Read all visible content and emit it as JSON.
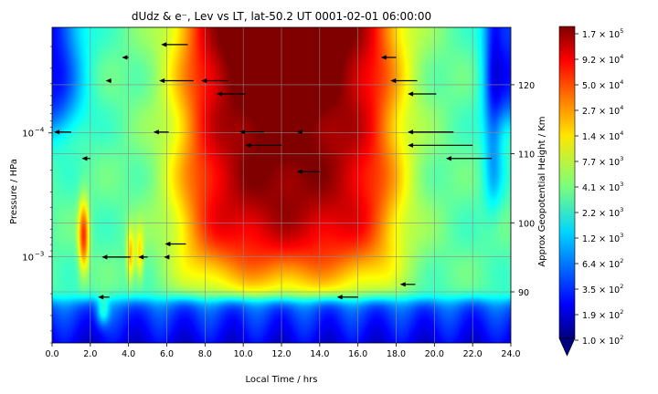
{
  "chart_data": {
    "type": "heatmap",
    "title": "dUdz & e⁻, Lev vs LT, lat-50.2 UT 0001-02-01 06:00:00",
    "xlabel": "Local Time / hrs",
    "ylabel": "Pressure / HPa",
    "y2label": "Approx Geopotential Height / Km",
    "xlim": [
      0,
      24
    ],
    "x_ticks": [
      0,
      2,
      4,
      6,
      8,
      10,
      12,
      14,
      16,
      18,
      20,
      22,
      24
    ],
    "x_tick_labels": [
      "0.0",
      "2.0",
      "4.0",
      "6.0",
      "8.0",
      "10.0",
      "12.0",
      "14.0",
      "16.0",
      "18.0",
      "20.0",
      "22.0",
      "24.0"
    ],
    "y_scale": "log",
    "ylim_hpa": [
      0.005,
      1.4e-05
    ],
    "y_ticks": [
      {
        "label_base": "10",
        "label_exp": "−4",
        "hpa": 0.0001
      },
      {
        "label_base": "10",
        "label_exp": "−3",
        "hpa": 0.001
      }
    ],
    "y2_ticks": [
      90,
      100,
      110,
      120
    ],
    "grid": true,
    "colorscale": "jet, logarithmic",
    "colorbar_label_scale": "log",
    "colorbar_ticks": [
      {
        "mant": "1.7",
        "exp": "5"
      },
      {
        "mant": "9.2",
        "exp": "4"
      },
      {
        "mant": "5.0",
        "exp": "4"
      },
      {
        "mant": "2.7",
        "exp": "4"
      },
      {
        "mant": "1.4",
        "exp": "4"
      },
      {
        "mant": "7.7",
        "exp": "3"
      },
      {
        "mant": "4.1",
        "exp": "3"
      },
      {
        "mant": "2.2",
        "exp": "3"
      },
      {
        "mant": "1.2",
        "exp": "3"
      },
      {
        "mant": "6.4",
        "exp": "2"
      },
      {
        "mant": "3.5",
        "exp": "2"
      },
      {
        "mant": "1.9",
        "exp": "2"
      },
      {
        "mant": "1.0",
        "exp": "2"
      }
    ],
    "arrows": [
      {
        "lt": 7.1,
        "hpa": 1.93e-05,
        "len": 1.4
      },
      {
        "lt": 4.0,
        "hpa": 2.45e-05,
        "len": 0.35
      },
      {
        "lt": 18.0,
        "hpa": 2.45e-05,
        "len": 0.8
      },
      {
        "lt": 3.1,
        "hpa": 3.78e-05,
        "len": 0.3
      },
      {
        "lt": 7.4,
        "hpa": 3.78e-05,
        "len": 1.8
      },
      {
        "lt": 9.2,
        "hpa": 3.78e-05,
        "len": 1.4
      },
      {
        "lt": 19.1,
        "hpa": 3.78e-05,
        "len": 1.4
      },
      {
        "lt": 10.1,
        "hpa": 4.84e-05,
        "len": 1.5
      },
      {
        "lt": 20.1,
        "hpa": 4.84e-05,
        "len": 1.5
      },
      {
        "lt": 1.0,
        "hpa": 9.84e-05,
        "len": 0.9
      },
      {
        "lt": 6.1,
        "hpa": 9.84e-05,
        "len": 0.8
      },
      {
        "lt": 11.1,
        "hpa": 9.84e-05,
        "len": 1.3
      },
      {
        "lt": 13.0,
        "hpa": 9.84e-05,
        "len": 0.2
      },
      {
        "lt": 21.0,
        "hpa": 9.84e-05,
        "len": 2.4
      },
      {
        "lt": 12.0,
        "hpa": 0.000126,
        "len": 1.9
      },
      {
        "lt": 22.0,
        "hpa": 0.000126,
        "len": 3.4
      },
      {
        "lt": 2.0,
        "hpa": 0.000161,
        "len": 0.45
      },
      {
        "lt": 23.0,
        "hpa": 0.000161,
        "len": 2.4
      },
      {
        "lt": 14.0,
        "hpa": 0.000206,
        "len": 1.2
      },
      {
        "lt": 7.0,
        "hpa": 0.000791,
        "len": 1.1
      },
      {
        "lt": 4.1,
        "hpa": 0.00101,
        "len": 1.5
      },
      {
        "lt": 5.0,
        "hpa": 0.00101,
        "len": 0.5
      },
      {
        "lt": 6.0,
        "hpa": 0.00101,
        "len": 0.15
      },
      {
        "lt": 19.0,
        "hpa": 0.00168,
        "len": 0.8
      },
      {
        "lt": 3.0,
        "hpa": 0.00213,
        "len": 0.6
      },
      {
        "lt": 16.0,
        "hpa": 0.00213,
        "len": 1.1
      }
    ]
  }
}
